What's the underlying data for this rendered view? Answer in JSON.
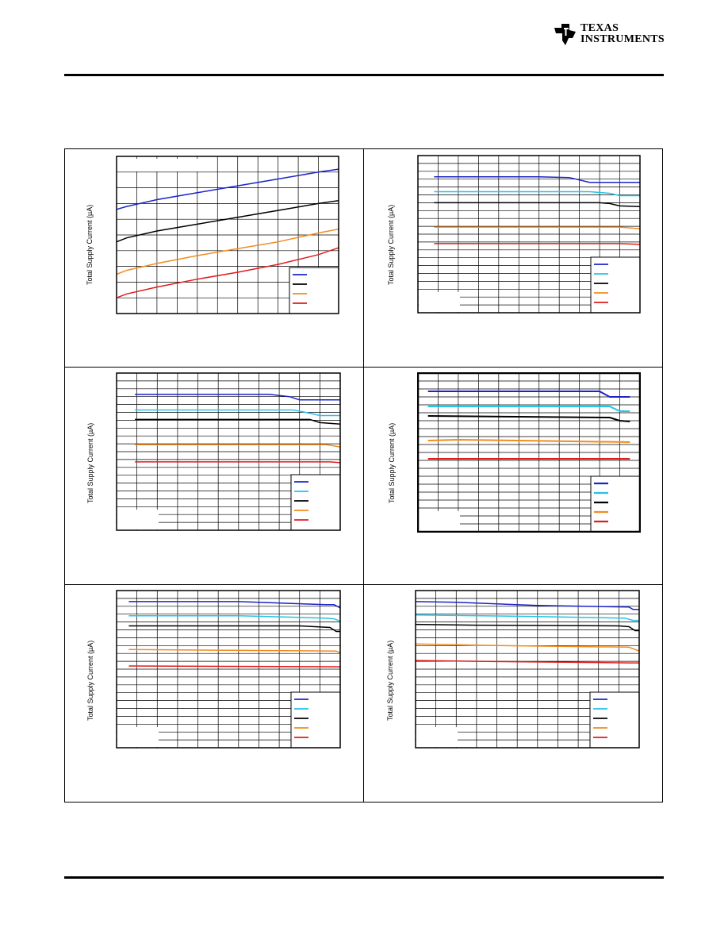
{
  "header": {
    "logo": {
      "line1": "TEXAS",
      "line2": "INSTRUMENTS"
    }
  },
  "colors": {
    "blue": "#1c24c8",
    "cyan": "#22c4e8",
    "black": "#000000",
    "orange": "#f08c1e",
    "red": "#e01c1c"
  },
  "chart_data": [
    {
      "type": "line",
      "ylabel": "Total Supply Current (µA)",
      "grid": true,
      "legend": "bottom-right",
      "ylim": [
        0,
        8
      ],
      "xlim": [
        0,
        11
      ],
      "series": [
        {
          "color": "#1c24c8",
          "x": [
            0,
            0.5,
            2,
            4,
            6,
            8,
            10,
            11
          ],
          "y": [
            5.3,
            5.45,
            5.8,
            6.15,
            6.5,
            6.85,
            7.2,
            7.35
          ]
        },
        {
          "color": "#000000",
          "x": [
            0,
            0.5,
            2,
            4,
            6,
            8,
            10,
            11
          ],
          "y": [
            3.65,
            3.85,
            4.2,
            4.55,
            4.9,
            5.25,
            5.6,
            5.75
          ]
        },
        {
          "color": "#f08c1e",
          "x": [
            0,
            0.5,
            2,
            4,
            6,
            8,
            10,
            11
          ],
          "y": [
            2.0,
            2.2,
            2.55,
            2.95,
            3.3,
            3.65,
            4.1,
            4.3
          ]
        },
        {
          "color": "#e01c1c",
          "x": [
            0,
            0.5,
            2,
            4,
            6,
            8,
            10,
            11
          ],
          "y": [
            0.8,
            1.0,
            1.35,
            1.75,
            2.1,
            2.5,
            3.0,
            3.35
          ]
        }
      ]
    },
    {
      "type": "line",
      "ylabel": "Total Supply Current (µA)",
      "grid": true,
      "legend": "bottom-right",
      "ylim": [
        0,
        10
      ],
      "xlim": [
        0,
        11
      ],
      "series": [
        {
          "color": "#1c24c8",
          "x": [
            0.8,
            6,
            7.5,
            8.5,
            11
          ],
          "y": [
            8.65,
            8.65,
            8.6,
            8.3,
            8.3
          ]
        },
        {
          "color": "#22c4e8",
          "x": [
            0.8,
            8.5,
            9.5,
            10,
            11
          ],
          "y": [
            7.7,
            7.7,
            7.6,
            7.45,
            7.45
          ]
        },
        {
          "color": "#000000",
          "x": [
            0.8,
            9,
            9.5,
            10,
            11
          ],
          "y": [
            7.0,
            7.0,
            6.95,
            6.8,
            6.75
          ]
        },
        {
          "color": "#f08c1e",
          "x": [
            0.8,
            10,
            11
          ],
          "y": [
            5.45,
            5.45,
            5.35
          ]
        },
        {
          "color": "#e01c1c",
          "x": [
            0.8,
            10,
            11
          ],
          "y": [
            4.4,
            4.4,
            4.35
          ]
        }
      ]
    },
    {
      "type": "line",
      "ylabel": "Total Supply Current (µA)",
      "grid": true,
      "legend": "bottom-right",
      "ylim": [
        0,
        10
      ],
      "xlim": [
        0,
        11
      ],
      "series": [
        {
          "color": "#1c24c8",
          "x": [
            0.9,
            7.5,
            8.5,
            9,
            11
          ],
          "y": [
            8.65,
            8.65,
            8.5,
            8.3,
            8.3
          ]
        },
        {
          "color": "#22c4e8",
          "x": [
            0.9,
            8.7,
            9.3,
            10,
            11
          ],
          "y": [
            7.65,
            7.65,
            7.5,
            7.3,
            7.3
          ]
        },
        {
          "color": "#000000",
          "x": [
            0.9,
            9.5,
            10,
            11
          ],
          "y": [
            7.05,
            7.05,
            6.85,
            6.75
          ]
        },
        {
          "color": "#f08c1e",
          "x": [
            0.9,
            10.3,
            11
          ],
          "y": [
            5.45,
            5.45,
            5.3
          ]
        },
        {
          "color": "#e01c1c",
          "x": [
            0.9,
            10.5,
            11
          ],
          "y": [
            4.35,
            4.35,
            4.3
          ]
        }
      ]
    },
    {
      "type": "line",
      "ylabel": "Total Supply Current (µA)",
      "grid": true,
      "legend": "bottom-right",
      "ylim": [
        0,
        10
      ],
      "xlim": [
        0,
        11
      ],
      "series": [
        {
          "color": "#1c24c8",
          "x": [
            0.5,
            9,
            9.5,
            10.5
          ],
          "y": [
            8.85,
            8.85,
            8.5,
            8.5
          ]
        },
        {
          "color": "#22c4e8",
          "x": [
            0.5,
            9.5,
            10,
            10.5
          ],
          "y": [
            7.9,
            7.9,
            7.6,
            7.6
          ]
        },
        {
          "color": "#000000",
          "x": [
            0.5,
            5,
            9.5,
            10,
            10.5
          ],
          "y": [
            7.3,
            7.25,
            7.2,
            7.0,
            6.95
          ]
        },
        {
          "color": "#f08c1e",
          "x": [
            0.5,
            2,
            10.5
          ],
          "y": [
            5.75,
            5.8,
            5.65
          ]
        },
        {
          "color": "#e01c1c",
          "x": [
            0.5,
            10.5
          ],
          "y": [
            4.6,
            4.6
          ]
        }
      ]
    },
    {
      "type": "line",
      "ylabel": "Total Supply Current (µA)",
      "grid": true,
      "legend": "bottom-right",
      "ylim": [
        0,
        10
      ],
      "xlim": [
        0,
        11
      ],
      "series": [
        {
          "color": "#1c24c8",
          "x": [
            0.6,
            6,
            10.3,
            10.7,
            11
          ],
          "y": [
            9.3,
            9.3,
            9.1,
            9.1,
            8.9
          ]
        },
        {
          "color": "#22c4e8",
          "x": [
            0.6,
            6,
            10.3,
            10.7,
            11
          ],
          "y": [
            8.4,
            8.4,
            8.25,
            8.2,
            8.05
          ]
        },
        {
          "color": "#000000",
          "x": [
            0.6,
            9,
            10.5,
            10.8,
            11
          ],
          "y": [
            7.75,
            7.75,
            7.65,
            7.4,
            7.4
          ]
        },
        {
          "color": "#f08c1e",
          "x": [
            0.6,
            10.8,
            11
          ],
          "y": [
            6.25,
            6.15,
            6.05
          ]
        },
        {
          "color": "#e01c1c",
          "x": [
            0.6,
            10.8,
            11
          ],
          "y": [
            5.2,
            5.15,
            5.15
          ]
        }
      ]
    },
    {
      "type": "line",
      "ylabel": "Total Supply Current (µA)",
      "grid": true,
      "legend": "bottom-right",
      "ylim": [
        0,
        10
      ],
      "xlim": [
        0,
        11
      ],
      "series": [
        {
          "color": "#1c24c8",
          "x": [
            0,
            2,
            6,
            10.5,
            10.7,
            11
          ],
          "y": [
            9.3,
            9.25,
            9.05,
            8.95,
            8.8,
            8.8
          ]
        },
        {
          "color": "#22c4e8",
          "x": [
            0,
            6,
            10.3,
            10.7,
            11
          ],
          "y": [
            8.45,
            8.35,
            8.25,
            8.1,
            8.1
          ]
        },
        {
          "color": "#000000",
          "x": [
            0,
            3,
            10,
            10.5,
            10.8,
            11
          ],
          "y": [
            7.85,
            7.8,
            7.75,
            7.7,
            7.45,
            7.45
          ]
        },
        {
          "color": "#f08c1e",
          "x": [
            0,
            4,
            10.5,
            11
          ],
          "y": [
            6.6,
            6.5,
            6.4,
            6.15
          ]
        },
        {
          "color": "#e01c1c",
          "x": [
            0,
            3,
            10.5,
            11
          ],
          "y": [
            5.55,
            5.5,
            5.4,
            5.4
          ]
        }
      ]
    }
  ]
}
